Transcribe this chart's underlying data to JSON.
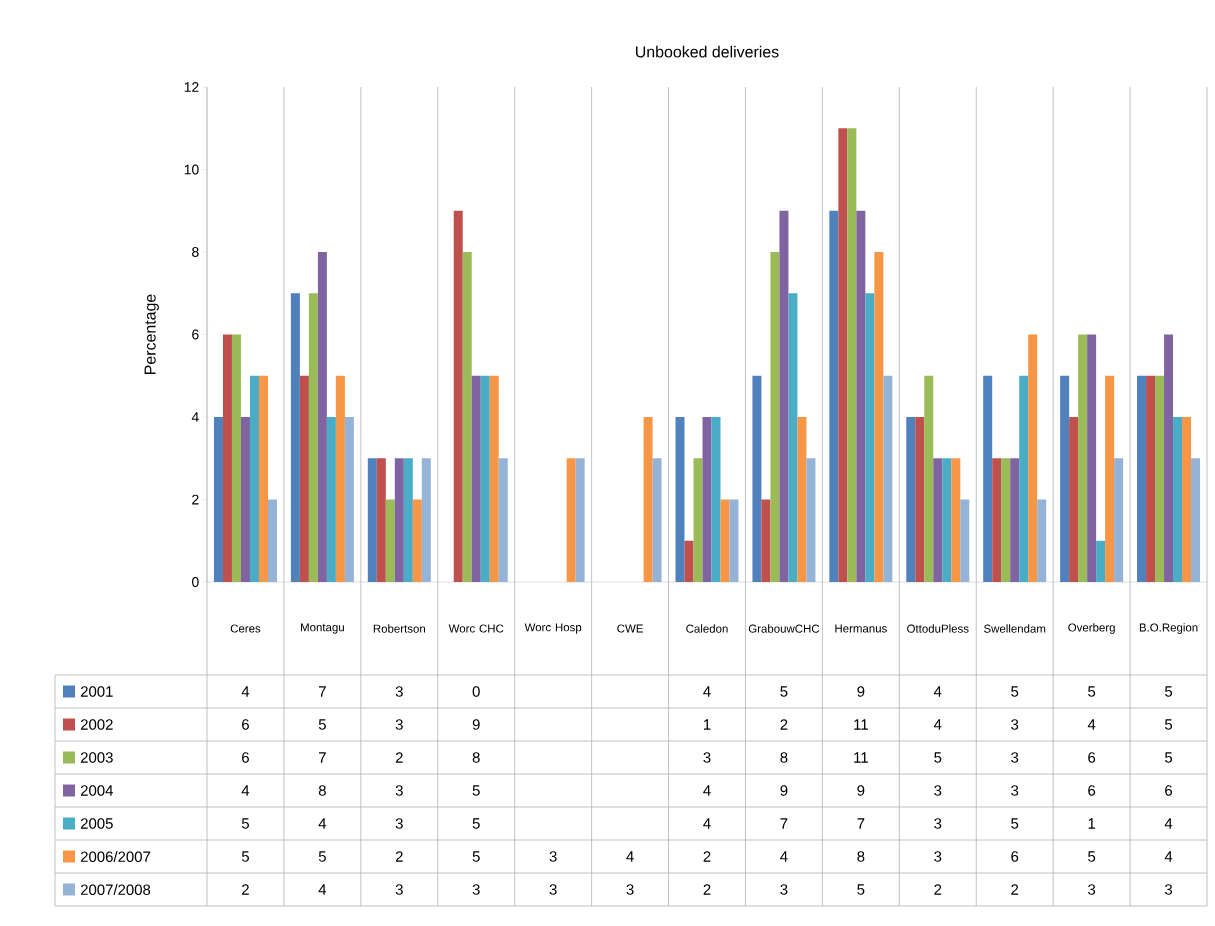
{
  "chart_data": {
    "type": "bar",
    "title": "Unbooked deliveries",
    "ylabel": "Percentage",
    "categories": [
      "Ceres",
      "Montagu",
      "Robertson",
      "Worc CHC",
      "Worc Hosp",
      "CWE",
      "Caledon",
      "GrabouwCHC",
      "Hermanus",
      "OttoduPless",
      "Swellendam",
      "Overberg",
      "B.O.Region"
    ],
    "series": [
      {
        "name": "2001",
        "color": "#4f81bd",
        "values": [
          4,
          7,
          3,
          0,
          null,
          null,
          4,
          5,
          9,
          4,
          5,
          5,
          5
        ]
      },
      {
        "name": "2002",
        "color": "#c0504d",
        "values": [
          6,
          5,
          3,
          9,
          null,
          null,
          1,
          2,
          11,
          4,
          3,
          4,
          5
        ]
      },
      {
        "name": "2003",
        "color": "#9bbb59",
        "values": [
          6,
          7,
          2,
          8,
          null,
          null,
          3,
          8,
          11,
          5,
          3,
          6,
          5
        ]
      },
      {
        "name": "2004",
        "color": "#8064a2",
        "values": [
          4,
          8,
          3,
          5,
          null,
          null,
          4,
          9,
          9,
          3,
          3,
          6,
          6
        ]
      },
      {
        "name": "2005",
        "color": "#4bacc6",
        "values": [
          5,
          4,
          3,
          5,
          null,
          null,
          4,
          7,
          7,
          3,
          5,
          1,
          4
        ]
      },
      {
        "name": "2006/2007",
        "color": "#f79646",
        "values": [
          5,
          5,
          2,
          5,
          3,
          4,
          2,
          4,
          8,
          3,
          6,
          5,
          4
        ]
      },
      {
        "name": "2007/2008",
        "color": "#95b3d7",
        "values": [
          2,
          4,
          3,
          3,
          3,
          3,
          2,
          3,
          5,
          2,
          2,
          3,
          3
        ]
      }
    ],
    "ylim": [
      0,
      12
    ],
    "yticks": [
      0,
      2,
      4,
      6,
      8,
      10,
      12
    ],
    "data_labels": true,
    "legend": "bottom left"
  }
}
